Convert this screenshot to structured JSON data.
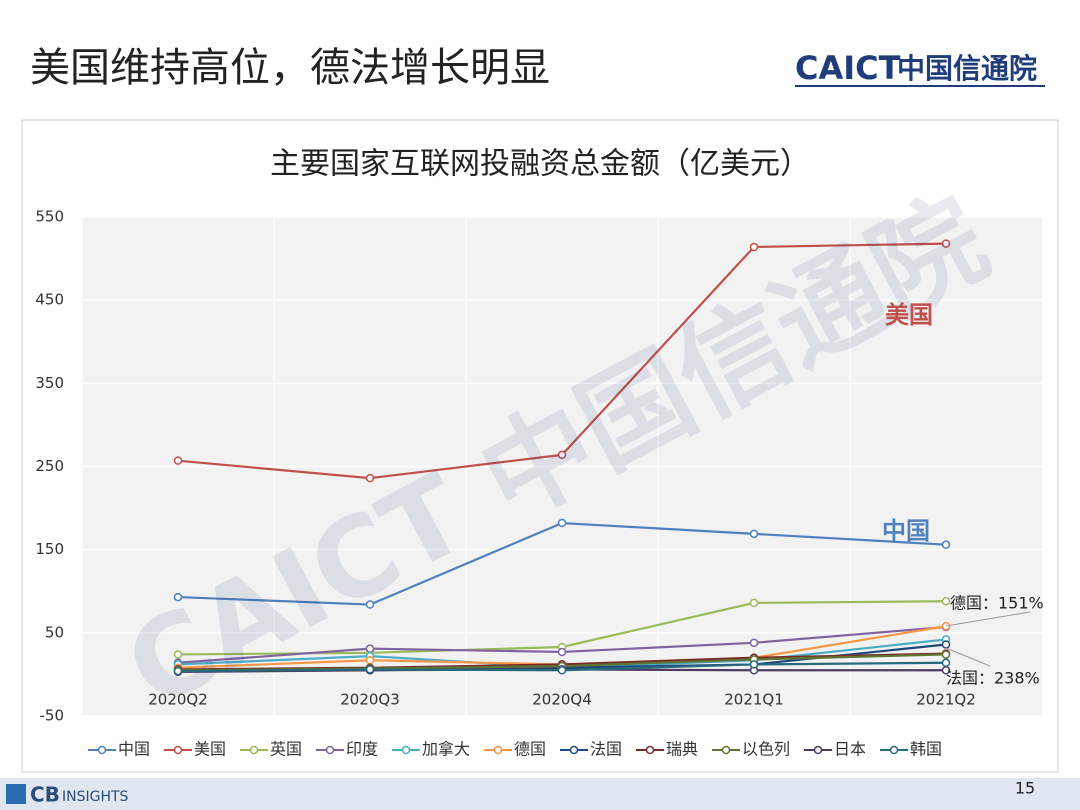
{
  "slide": {
    "title": "美国维持高位，德法增长明显",
    "logo_en": "CAICT",
    "logo_cn": "中国信通院",
    "watermark": "CAICT 中国信通院",
    "source_logo": [
      "CB",
      "INSIGHTS"
    ],
    "page_number": "15"
  },
  "chart_data": {
    "type": "line",
    "title": "主要国家互联网投融资总金额（亿美元）",
    "categories": [
      "2020Q2",
      "2020Q3",
      "2020Q4",
      "2021Q1",
      "2021Q2"
    ],
    "ylim": [
      -50,
      550
    ],
    "yticks": [
      -50,
      50,
      150,
      250,
      350,
      450,
      550
    ],
    "grid": true,
    "legend": "bottom",
    "series": [
      {
        "name": "中国",
        "color": "#4f81bd",
        "values": [
          93,
          84,
          182,
          169,
          156
        ]
      },
      {
        "name": "美国",
        "color": "#c0504d",
        "values": [
          257,
          236,
          264,
          514,
          518
        ]
      },
      {
        "name": "英国",
        "color": "#9bbb59",
        "values": [
          24,
          26,
          33,
          86,
          88
        ]
      },
      {
        "name": "印度",
        "color": "#8064a2",
        "values": [
          14,
          31,
          27,
          38,
          57
        ]
      },
      {
        "name": "加拿大",
        "color": "#4bacc6",
        "values": [
          12,
          22,
          8,
          17,
          42
        ]
      },
      {
        "name": "德国",
        "color": "#f79646",
        "values": [
          8,
          17,
          12,
          20,
          58
        ]
      },
      {
        "name": "法国",
        "color": "#1f497d",
        "values": [
          4,
          5,
          8,
          12,
          36
        ]
      },
      {
        "name": "瑞典",
        "color": "#772c2a",
        "values": [
          6,
          8,
          12,
          20,
          25
        ]
      },
      {
        "name": "以色列",
        "color": "#5f7530",
        "values": [
          5,
          7,
          10,
          18,
          24
        ]
      },
      {
        "name": "日本",
        "color": "#4d3b62",
        "values": [
          3,
          5,
          6,
          5,
          5
        ]
      },
      {
        "name": "韩国",
        "color": "#276a7c",
        "values": [
          4,
          6,
          5,
          12,
          14
        ]
      }
    ],
    "annotations": [
      "美国",
      "中国",
      "德国：151%",
      "法国：238%"
    ]
  }
}
